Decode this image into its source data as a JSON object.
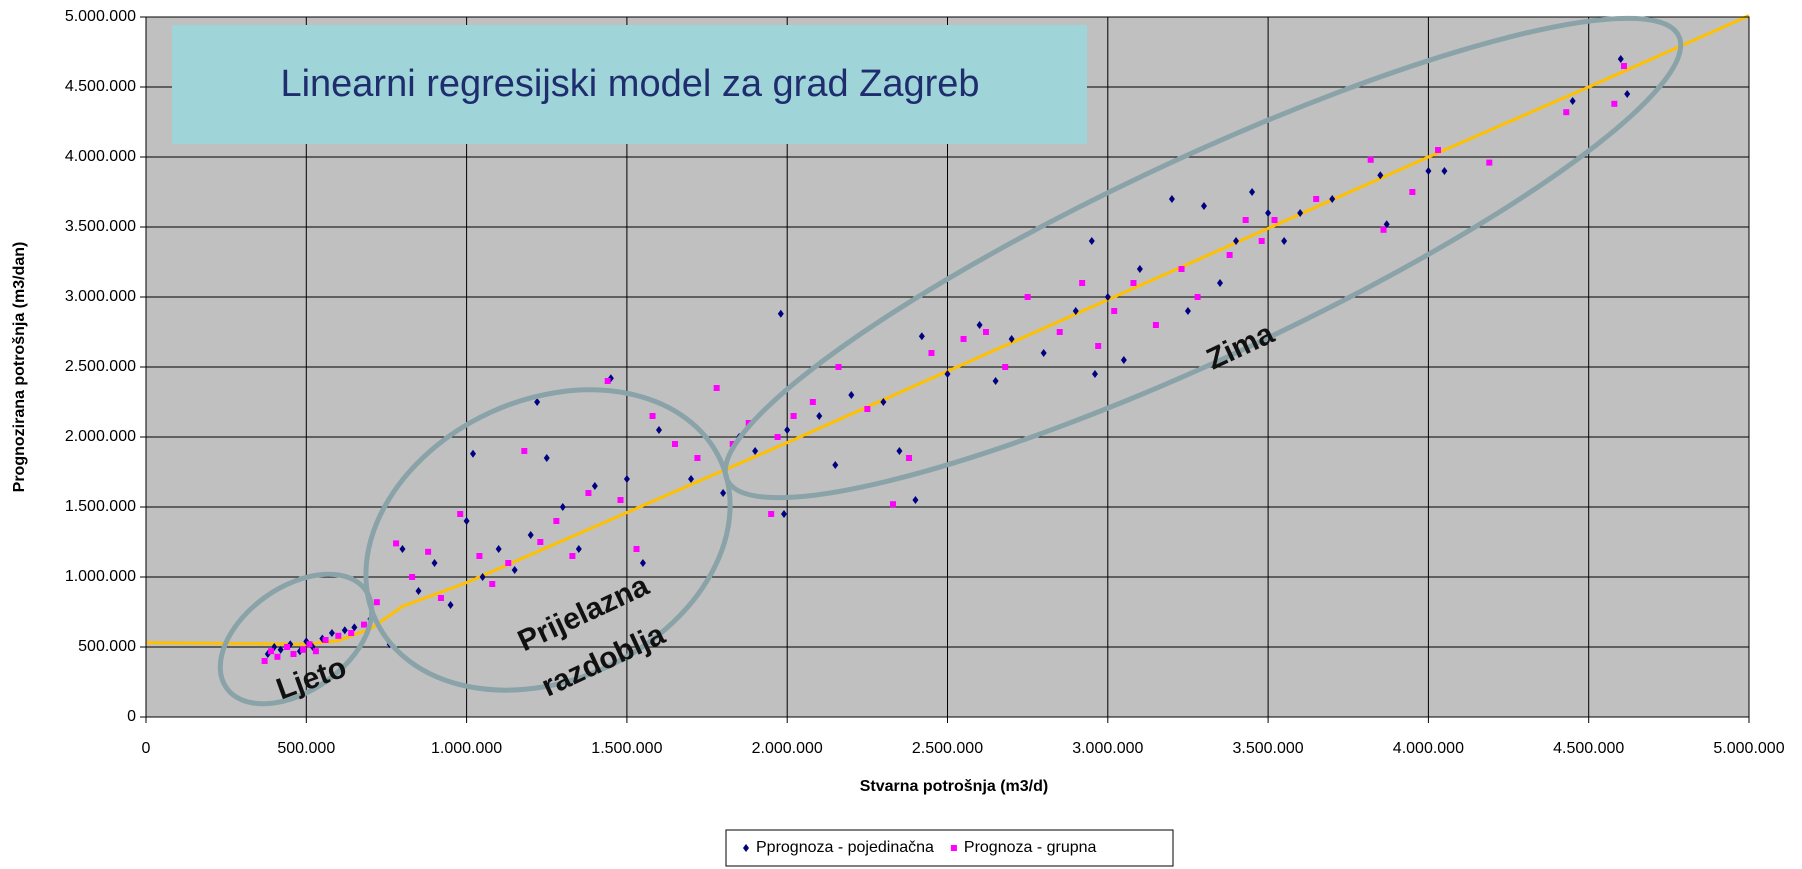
{
  "chart_data": {
    "type": "scatter",
    "title": "Linearni regresijski model za grad Zagreb",
    "x_label": "Stvarna potrošnja (m3/d)",
    "y_label": "Prognozirana potrošnja (m3/dan)",
    "annotations": [
      "Ljeto",
      "Prijelazna",
      "razdoblja",
      "Zima"
    ],
    "xlim": [
      0,
      5000000
    ],
    "ylim": [
      0,
      5000000
    ],
    "xticks": [
      0,
      {
        "value": 500000,
        "label": "500.000"
      },
      {
        "value": 1000000,
        "label": "1.000.000"
      },
      {
        "value": 1500000,
        "label": "1.500.000"
      },
      {
        "value": 2000000,
        "label": "2.000.000"
      },
      {
        "value": 2500000,
        "label": "2.500.000"
      },
      {
        "value": 3000000,
        "label": "3.000.000"
      },
      {
        "value": 3500000,
        "label": "3.500.000"
      },
      {
        "value": 4000000,
        "label": "4.000.000"
      },
      {
        "value": 4500000,
        "label": "4.500.000"
      },
      {
        "value": 5000000,
        "label": "5.000.000"
      }
    ],
    "yticks": [
      0,
      {
        "value": 500000,
        "label": "500.000"
      },
      {
        "value": 1000000,
        "label": "1.000.000"
      },
      {
        "value": 1500000,
        "label": "1.500.000"
      },
      {
        "value": 2000000,
        "label": "2.000.000"
      },
      {
        "value": 2500000,
        "label": "2.500.000"
      },
      {
        "value": 3000000,
        "label": "3.000.000"
      },
      {
        "value": 3500000,
        "label": "3.500.000"
      },
      {
        "value": 4000000,
        "label": "4.000.000"
      },
      {
        "value": 4500000,
        "label": "4.500.000"
      },
      {
        "value": 5000000,
        "label": "5.000.000"
      }
    ],
    "grid": true,
    "legend": "bottom",
    "series": [
      {
        "name": "Pprognoza - pojedinačna",
        "color": "#000080",
        "x": [
          380000,
          400000,
          420000,
          450000,
          480000,
          500000,
          520000,
          550000,
          580000,
          620000,
          650000,
          700000,
          760000,
          800000,
          850000,
          900000,
          950000,
          1000000,
          1020000,
          1050000,
          1100000,
          1150000,
          1200000,
          1220000,
          1250000,
          1300000,
          1350000,
          1400000,
          1450000,
          1500000,
          1550000,
          1600000,
          1700000,
          1800000,
          1850000,
          1900000,
          1980000,
          1990000,
          2000000,
          2100000,
          2150000,
          2200000,
          2300000,
          2350000,
          2400000,
          2420000,
          2500000,
          2600000,
          2650000,
          2700000,
          2800000,
          2900000,
          2950000,
          2960000,
          3000000,
          3050000,
          3100000,
          3200000,
          3250000,
          3300000,
          3350000,
          3400000,
          3450000,
          3500000,
          3550000,
          3600000,
          3700000,
          3850000,
          3870000,
          4000000,
          4050000,
          4450000,
          4600000,
          4620000
        ],
        "y": [
          450000,
          500000,
          480000,
          520000,
          470000,
          540000,
          500000,
          560000,
          600000,
          620000,
          640000,
          700000,
          520000,
          1200000,
          900000,
          1100000,
          800000,
          1400000,
          1880000,
          1000000,
          1200000,
          1050000,
          1300000,
          2250000,
          1850000,
          1500000,
          1200000,
          1650000,
          2420000,
          1700000,
          1100000,
          2050000,
          1700000,
          1600000,
          2000000,
          1900000,
          2880000,
          1450000,
          2050000,
          2150000,
          1800000,
          2300000,
          2250000,
          1900000,
          1550000,
          2720000,
          2450000,
          2800000,
          2400000,
          2700000,
          2600000,
          2900000,
          3400000,
          2450000,
          3000000,
          2550000,
          3200000,
          3700000,
          2900000,
          3650000,
          3100000,
          3400000,
          3750000,
          3600000,
          3400000,
          3600000,
          3700000,
          3870000,
          3520000,
          3900000,
          3900000,
          4400000,
          4700000,
          4450000
        ]
      },
      {
        "name": "Prognoza - grupna",
        "color": "#ff00ff",
        "x": [
          370000,
          390000,
          410000,
          440000,
          460000,
          490000,
          510000,
          530000,
          560000,
          600000,
          640000,
          680000,
          720000,
          780000,
          830000,
          880000,
          920000,
          980000,
          1040000,
          1080000,
          1130000,
          1180000,
          1230000,
          1280000,
          1330000,
          1380000,
          1440000,
          1480000,
          1530000,
          1580000,
          1650000,
          1720000,
          1780000,
          1830000,
          1880000,
          1950000,
          1970000,
          2020000,
          2080000,
          2160000,
          2250000,
          2330000,
          2380000,
          2450000,
          2550000,
          2620000,
          2680000,
          2750000,
          2850000,
          2920000,
          2970000,
          3020000,
          3080000,
          3150000,
          3230000,
          3280000,
          3380000,
          3430000,
          3480000,
          3520000,
          3650000,
          3820000,
          3860000,
          3950000,
          4030000,
          4190000,
          4430000,
          4580000,
          4610000
        ],
        "y": [
          400000,
          470000,
          430000,
          500000,
          450000,
          480000,
          520000,
          470000,
          550000,
          580000,
          600000,
          660000,
          820000,
          1240000,
          1000000,
          1180000,
          850000,
          1450000,
          1150000,
          950000,
          1100000,
          1900000,
          1250000,
          1400000,
          1150000,
          1600000,
          2400000,
          1550000,
          1200000,
          2150000,
          1950000,
          1850000,
          2350000,
          1950000,
          2100000,
          1450000,
          2000000,
          2150000,
          2250000,
          2500000,
          2200000,
          1520000,
          1850000,
          2600000,
          2700000,
          2750000,
          2500000,
          3000000,
          2750000,
          3100000,
          2650000,
          2900000,
          3100000,
          2800000,
          3200000,
          3000000,
          3300000,
          3550000,
          3400000,
          3550000,
          3700000,
          3980000,
          3480000,
          3750000,
          4050000,
          3960000,
          4320000,
          4380000,
          4650000
        ]
      }
    ],
    "trendline": {
      "color": "#ffc000",
      "x": [
        0,
        300000,
        500000,
        600000,
        700000,
        800000,
        1000000,
        1500000,
        2000000,
        2500000,
        3000000,
        3500000,
        4000000,
        4500000,
        5000000
      ],
      "y": [
        530000,
        525000,
        520000,
        545000,
        630000,
        790000,
        960000,
        1460000,
        1960000,
        2470000,
        2980000,
        3490000,
        4000000,
        4500000,
        5010000
      ]
    }
  }
}
